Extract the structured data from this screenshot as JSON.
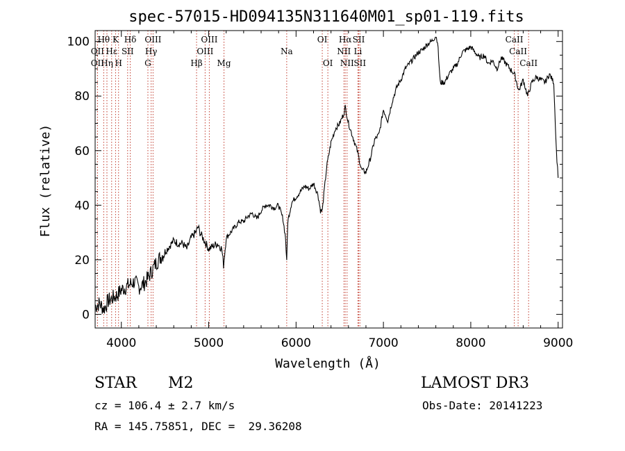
{
  "chart_data": {
    "type": "line",
    "title": "spec-57015-HD094135N311640M01_sp01-119.fits",
    "xlabel": "Wavelength (Å)",
    "ylabel": "Flux (relative)",
    "xlim": [
      3700,
      9050
    ],
    "ylim": [
      -5,
      104
    ],
    "xticks": [
      4000,
      5000,
      6000,
      7000,
      8000,
      9000
    ],
    "yticks": [
      0,
      20,
      40,
      60,
      80,
      100
    ],
    "grid": false,
    "series": [
      {
        "name": "spectrum",
        "x": [
          3700,
          3750,
          3800,
          3850,
          3900,
          3950,
          4000,
          4050,
          4100,
          4150,
          4200,
          4250,
          4300,
          4350,
          4400,
          4450,
          4500,
          4550,
          4600,
          4650,
          4700,
          4750,
          4800,
          4850,
          4880,
          4900,
          4950,
          5000,
          5050,
          5100,
          5150,
          5170,
          5200,
          5250,
          5300,
          5350,
          5400,
          5450,
          5500,
          5550,
          5600,
          5650,
          5700,
          5750,
          5800,
          5850,
          5880,
          5893,
          5905,
          5950,
          6000,
          6050,
          6100,
          6150,
          6200,
          6250,
          6280,
          6300,
          6350,
          6400,
          6450,
          6500,
          6550,
          6563,
          6600,
          6650,
          6700,
          6750,
          6800,
          6850,
          6900,
          6950,
          7000,
          7050,
          7100,
          7150,
          7200,
          7250,
          7300,
          7350,
          7400,
          7450,
          7500,
          7550,
          7600,
          7620,
          7650,
          7700,
          7750,
          7800,
          7850,
          7900,
          7950,
          8000,
          8050,
          8100,
          8150,
          8200,
          8250,
          8300,
          8350,
          8400,
          8450,
          8500,
          8550,
          8600,
          8650,
          8700,
          8750,
          8800,
          8850,
          8900,
          8950,
          8980,
          9000
        ],
        "y": [
          3,
          4,
          2,
          5,
          6,
          7,
          9,
          10,
          11,
          12,
          10,
          11,
          13,
          16,
          19,
          21,
          23,
          25,
          27,
          26,
          26,
          24,
          28,
          30,
          32,
          30,
          27,
          24,
          25,
          26,
          24,
          18,
          28,
          30,
          32,
          34,
          34,
          36,
          37,
          35,
          38,
          40,
          40,
          39,
          40,
          35,
          28,
          19,
          34,
          41,
          43,
          45,
          47,
          46,
          48,
          44,
          38,
          38,
          54,
          63,
          68,
          70,
          74,
          76,
          70,
          65,
          60,
          53,
          52,
          57,
          64,
          66,
          75,
          71,
          78,
          83,
          86,
          90,
          92,
          94,
          96,
          97,
          99,
          100,
          102,
          100,
          85,
          85,
          88,
          90,
          92,
          96,
          97,
          98,
          96,
          94,
          95,
          92,
          93,
          90,
          94,
          92,
          90,
          88,
          82,
          86,
          80,
          85,
          87,
          86,
          85,
          88,
          85,
          60,
          50
        ]
      }
    ],
    "lines": [
      {
        "name": "Hθ",
        "x": 3798,
        "row": 1
      },
      {
        "name": "OII",
        "x": 3727,
        "row": 2
      },
      {
        "name": "OII",
        "x": 3727,
        "row": 3
      },
      {
        "name": "Hε",
        "x": 3889,
        "row": 2
      },
      {
        "name": "Hη",
        "x": 3835,
        "row": 3
      },
      {
        "name": "K",
        "x": 3934,
        "row": 1
      },
      {
        "name": "H",
        "x": 3968,
        "row": 3
      },
      {
        "name": "SII",
        "x": 4072,
        "row": 2
      },
      {
        "name": "Hδ",
        "x": 4102,
        "row": 1
      },
      {
        "name": "OIII",
        "x": 4363,
        "row": 1
      },
      {
        "name": "Hγ",
        "x": 4341,
        "row": 2
      },
      {
        "name": "G",
        "x": 4304,
        "row": 3
      },
      {
        "name": "Hβ",
        "x": 4861,
        "row": 3
      },
      {
        "name": "OIII",
        "x": 4959,
        "row": 2
      },
      {
        "name": "OIII",
        "x": 5007,
        "row": 1
      },
      {
        "name": "Mg",
        "x": 5175,
        "row": 3
      },
      {
        "name": "Na",
        "x": 5893,
        "row": 2
      },
      {
        "name": "OI",
        "x": 6300,
        "row": 1
      },
      {
        "name": "OI",
        "x": 6364,
        "row": 3
      },
      {
        "name": "Hα",
        "x": 6563,
        "row": 1
      },
      {
        "name": "NII",
        "x": 6548,
        "row": 2
      },
      {
        "name": "NII",
        "x": 6584,
        "row": 3
      },
      {
        "name": "SII",
        "x": 6717,
        "row": 1
      },
      {
        "name": "Li",
        "x": 6708,
        "row": 2
      },
      {
        "name": "SII",
        "x": 6731,
        "row": 3
      },
      {
        "name": "CaII",
        "x": 8498,
        "row": 1
      },
      {
        "name": "CaII",
        "x": 8542,
        "row": 2
      },
      {
        "name": "CaII",
        "x": 8662,
        "row": 3
      }
    ]
  },
  "info": {
    "object_type": "STAR",
    "subclass": "M2",
    "survey": "LAMOST DR3",
    "cz": "cz = 106.4 ± 2.7 km/s",
    "obs_date": "Obs-Date: 20141223",
    "coords": "RA = 145.75851, DEC =  29.36208"
  }
}
